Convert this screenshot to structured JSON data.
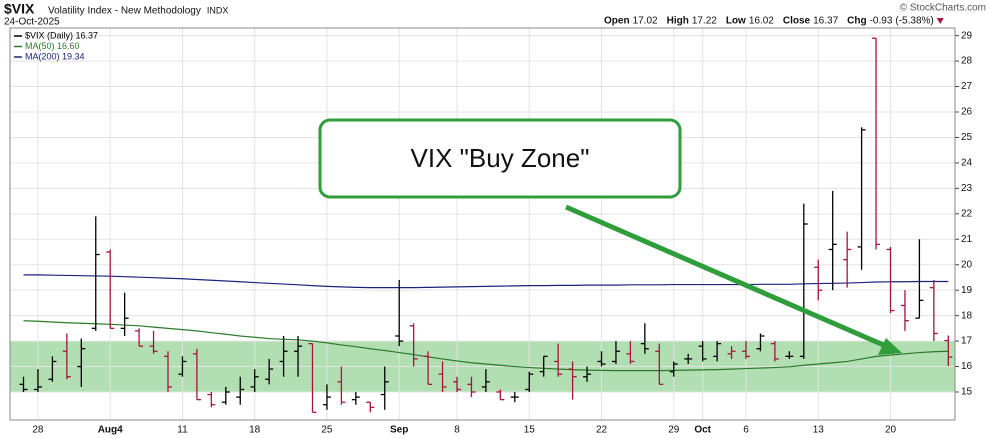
{
  "chart_data": {
    "type": "ohlc",
    "title": "$VIX",
    "subtitle": "Volatility Index - New Methodology",
    "exchange": "INDX",
    "date": "24-Oct-2025",
    "copyright": "© StockCharts.com",
    "quote": [
      {
        "label": "Open",
        "value": 17.02
      },
      {
        "label": "High",
        "value": 17.22
      },
      {
        "label": "Low",
        "value": 16.02
      },
      {
        "label": "Close",
        "value": 16.37
      },
      {
        "label": "Chg",
        "value": -0.93,
        "extra": "(-5.38%)"
      }
    ],
    "categories": [
      null,
      "28",
      null,
      null,
      null,
      null,
      "Aug4",
      null,
      null,
      null,
      null,
      "11",
      null,
      null,
      null,
      null,
      "18",
      null,
      null,
      null,
      null,
      "25",
      null,
      null,
      null,
      null,
      "Sep",
      null,
      null,
      null,
      "8",
      null,
      null,
      null,
      null,
      "15",
      null,
      null,
      null,
      null,
      "22",
      null,
      null,
      null,
      null,
      "29",
      null,
      "Oct",
      null,
      null,
      "6",
      null,
      null,
      null,
      null,
      "13",
      null,
      null,
      null,
      null,
      "20",
      null,
      null,
      null,
      null
    ],
    "ohlc": {
      "name": "$VIX (Daily) 16.37",
      "up_color": "#000000",
      "down_color": "#a8123f",
      "open": [
        15.3,
        15.1,
        15.5,
        16.6,
        16.0,
        17.5,
        20.5,
        17.5,
        17.4,
        16.8,
        16.4,
        15.7,
        16.5,
        14.9,
        14.6,
        14.8,
        15.2,
        15.5,
        16.2,
        16.6,
        16.9,
        14.5,
        15.4,
        14.7,
        14.6,
        14.9,
        17.2,
        17.6,
        16.4,
        15.7,
        15.4,
        15.3,
        15.2,
        15.0,
        14.8,
        15.1,
        15.8,
        16.2,
        15.9,
        15.6,
        16.2,
        16.2,
        16.5,
        16.9,
        16.6,
        15.8,
        16.3,
        16.8,
        16.4,
        16.5,
        16.6,
        16.7,
        16.9,
        16.4,
        16.4,
        19.9,
        20.6,
        20.2,
        20.7,
        28.9,
        20.6,
        18.4,
        17.9,
        19.1,
        17.02
      ],
      "high": [
        15.6,
        15.9,
        16.4,
        17.3,
        17.1,
        21.9,
        20.6,
        18.9,
        17.5,
        17.4,
        16.6,
        16.4,
        16.7,
        15.0,
        15.2,
        15.6,
        15.9,
        16.3,
        17.2,
        17.2,
        16.9,
        15.3,
        16.0,
        15.0,
        14.6,
        16.0,
        19.4,
        17.7,
        16.6,
        16.2,
        15.6,
        15.6,
        15.9,
        15.1,
        15.0,
        15.8,
        16.4,
        16.9,
        16.2,
        16.0,
        16.6,
        17.0,
        17.0,
        17.7,
        16.9,
        16.2,
        16.5,
        17.0,
        17.0,
        16.8,
        17.0,
        17.3,
        17.0,
        16.6,
        22.4,
        20.2,
        22.9,
        21.3,
        25.4,
        28.9,
        20.7,
        19.0,
        21.0,
        19.4,
        17.22
      ],
      "low": [
        15.0,
        15.0,
        15.4,
        15.5,
        15.2,
        17.4,
        17.5,
        17.2,
        16.8,
        16.5,
        15.0,
        15.6,
        14.7,
        14.4,
        14.5,
        14.5,
        15.0,
        15.3,
        15.6,
        15.6,
        14.2,
        14.3,
        14.5,
        14.5,
        14.2,
        14.3,
        16.8,
        16.0,
        15.3,
        15.0,
        15.0,
        14.8,
        15.0,
        14.7,
        14.6,
        15.0,
        15.6,
        15.6,
        14.7,
        15.4,
        16.0,
        16.1,
        16.1,
        16.5,
        15.3,
        15.6,
        16.1,
        16.2,
        16.2,
        16.3,
        16.3,
        16.6,
        16.2,
        16.3,
        16.3,
        18.6,
        19.0,
        19.1,
        19.8,
        20.6,
        18.1,
        17.4,
        17.9,
        17.0,
        16.02
      ],
      "close": [
        15.1,
        15.2,
        16.2,
        15.6,
        16.7,
        20.4,
        17.5,
        17.9,
        16.8,
        16.6,
        15.2,
        16.2,
        14.7,
        14.5,
        15.0,
        15.1,
        15.6,
        15.9,
        16.6,
        16.8,
        14.2,
        14.8,
        14.6,
        14.8,
        14.4,
        15.4,
        17.0,
        16.3,
        15.3,
        15.2,
        15.1,
        15.0,
        15.4,
        14.7,
        14.8,
        15.7,
        16.4,
        15.7,
        15.6,
        15.7,
        16.1,
        16.6,
        16.2,
        16.7,
        15.3,
        16.1,
        16.3,
        16.3,
        16.9,
        16.6,
        16.4,
        17.2,
        16.3,
        16.4,
        21.6,
        19.0,
        20.8,
        20.6,
        25.3,
        20.8,
        18.2,
        17.8,
        18.6,
        17.3,
        16.37
      ]
    },
    "series": [
      {
        "name": "MA(50) 16.60",
        "color": "#2b7a2b",
        "values": [
          17.8,
          17.78,
          17.75,
          17.72,
          17.7,
          17.68,
          17.66,
          17.63,
          17.6,
          17.55,
          17.5,
          17.45,
          17.4,
          17.33,
          17.27,
          17.2,
          17.15,
          17.1,
          17.07,
          17.05,
          17.0,
          16.93,
          16.85,
          16.78,
          16.7,
          16.63,
          16.55,
          16.47,
          16.38,
          16.3,
          16.22,
          16.15,
          16.1,
          16.05,
          16.0,
          15.96,
          15.93,
          15.9,
          15.88,
          15.86,
          15.85,
          15.84,
          15.84,
          15.84,
          15.84,
          15.85,
          15.86,
          15.87,
          15.88,
          15.9,
          15.92,
          15.94,
          15.96,
          15.99,
          16.05,
          16.1,
          16.15,
          16.2,
          16.3,
          16.4,
          16.45,
          16.5,
          16.55,
          16.58,
          16.6
        ]
      },
      {
        "name": "MA(200) 19.34",
        "color": "#1a237e",
        "values": [
          19.6,
          19.6,
          19.59,
          19.58,
          19.57,
          19.56,
          19.55,
          19.53,
          19.51,
          19.49,
          19.47,
          19.45,
          19.42,
          19.39,
          19.36,
          19.33,
          19.3,
          19.27,
          19.24,
          19.21,
          19.18,
          19.15,
          19.13,
          19.11,
          19.1,
          19.1,
          19.1,
          19.1,
          19.11,
          19.12,
          19.13,
          19.14,
          19.15,
          19.16,
          19.17,
          19.18,
          19.18,
          19.19,
          19.19,
          19.2,
          19.2,
          19.2,
          19.21,
          19.21,
          19.21,
          19.22,
          19.22,
          19.22,
          19.22,
          19.22,
          19.22,
          19.23,
          19.23,
          19.23,
          19.25,
          19.26,
          19.27,
          19.28,
          19.3,
          19.32,
          19.33,
          19.33,
          19.34,
          19.34,
          19.34
        ]
      }
    ],
    "band": {
      "low": 15,
      "high": 17,
      "color": "#a5d9a5"
    },
    "annotation": "VIX \"Buy Zone\"",
    "ylim": [
      13.9,
      29.3
    ],
    "yticks": [
      15,
      16,
      17,
      18,
      19,
      20,
      21,
      22,
      23,
      24,
      25,
      26,
      27,
      28,
      29
    ],
    "grid": true
  }
}
